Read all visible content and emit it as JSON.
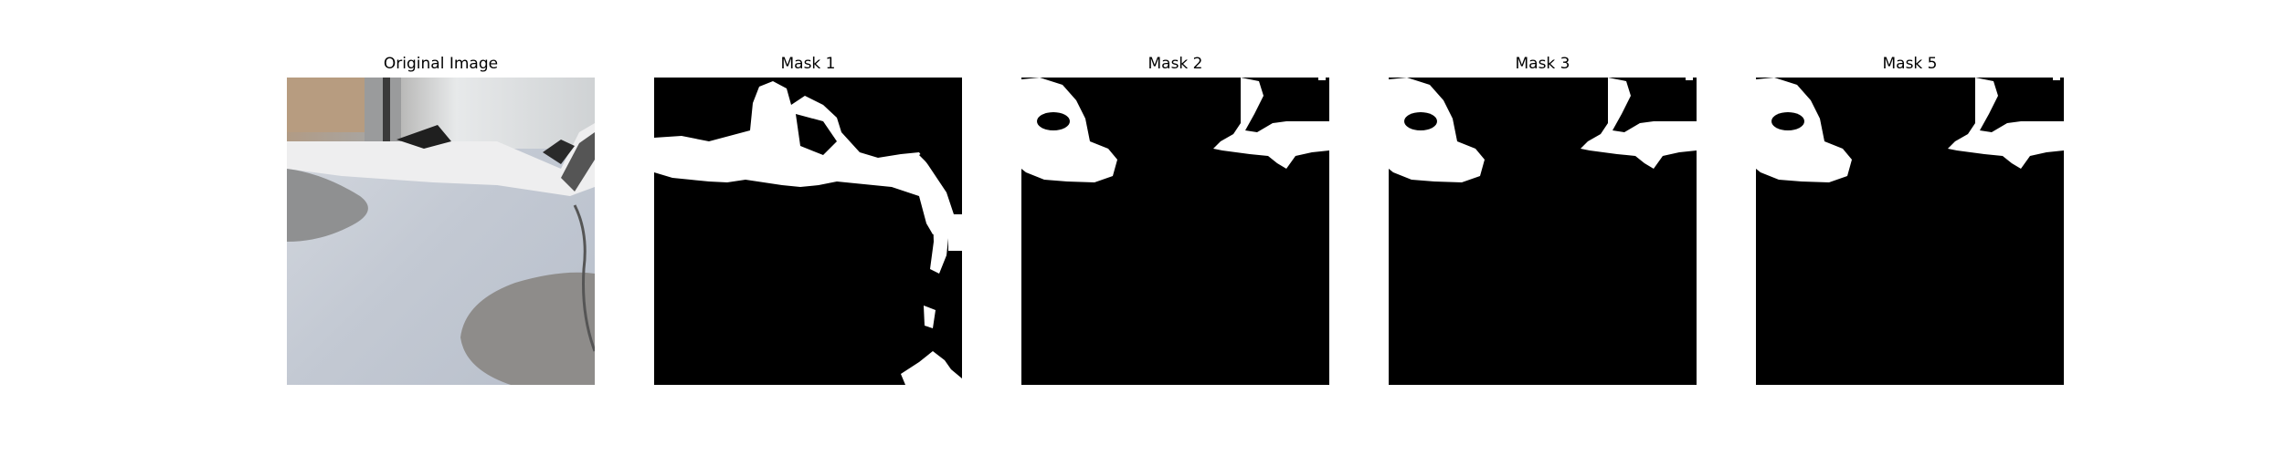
{
  "panels": [
    {
      "title": "Original Image"
    },
    {
      "title": "Mask 1"
    },
    {
      "title": "Mask 2"
    },
    {
      "title": "Mask 3"
    },
    {
      "title": "Mask 5"
    }
  ],
  "colors": {
    "background": "#ffffff",
    "mask_fg": "#ffffff",
    "mask_bg": "#000000",
    "surface": "#c9ced6",
    "shadow": "#8f9091"
  }
}
